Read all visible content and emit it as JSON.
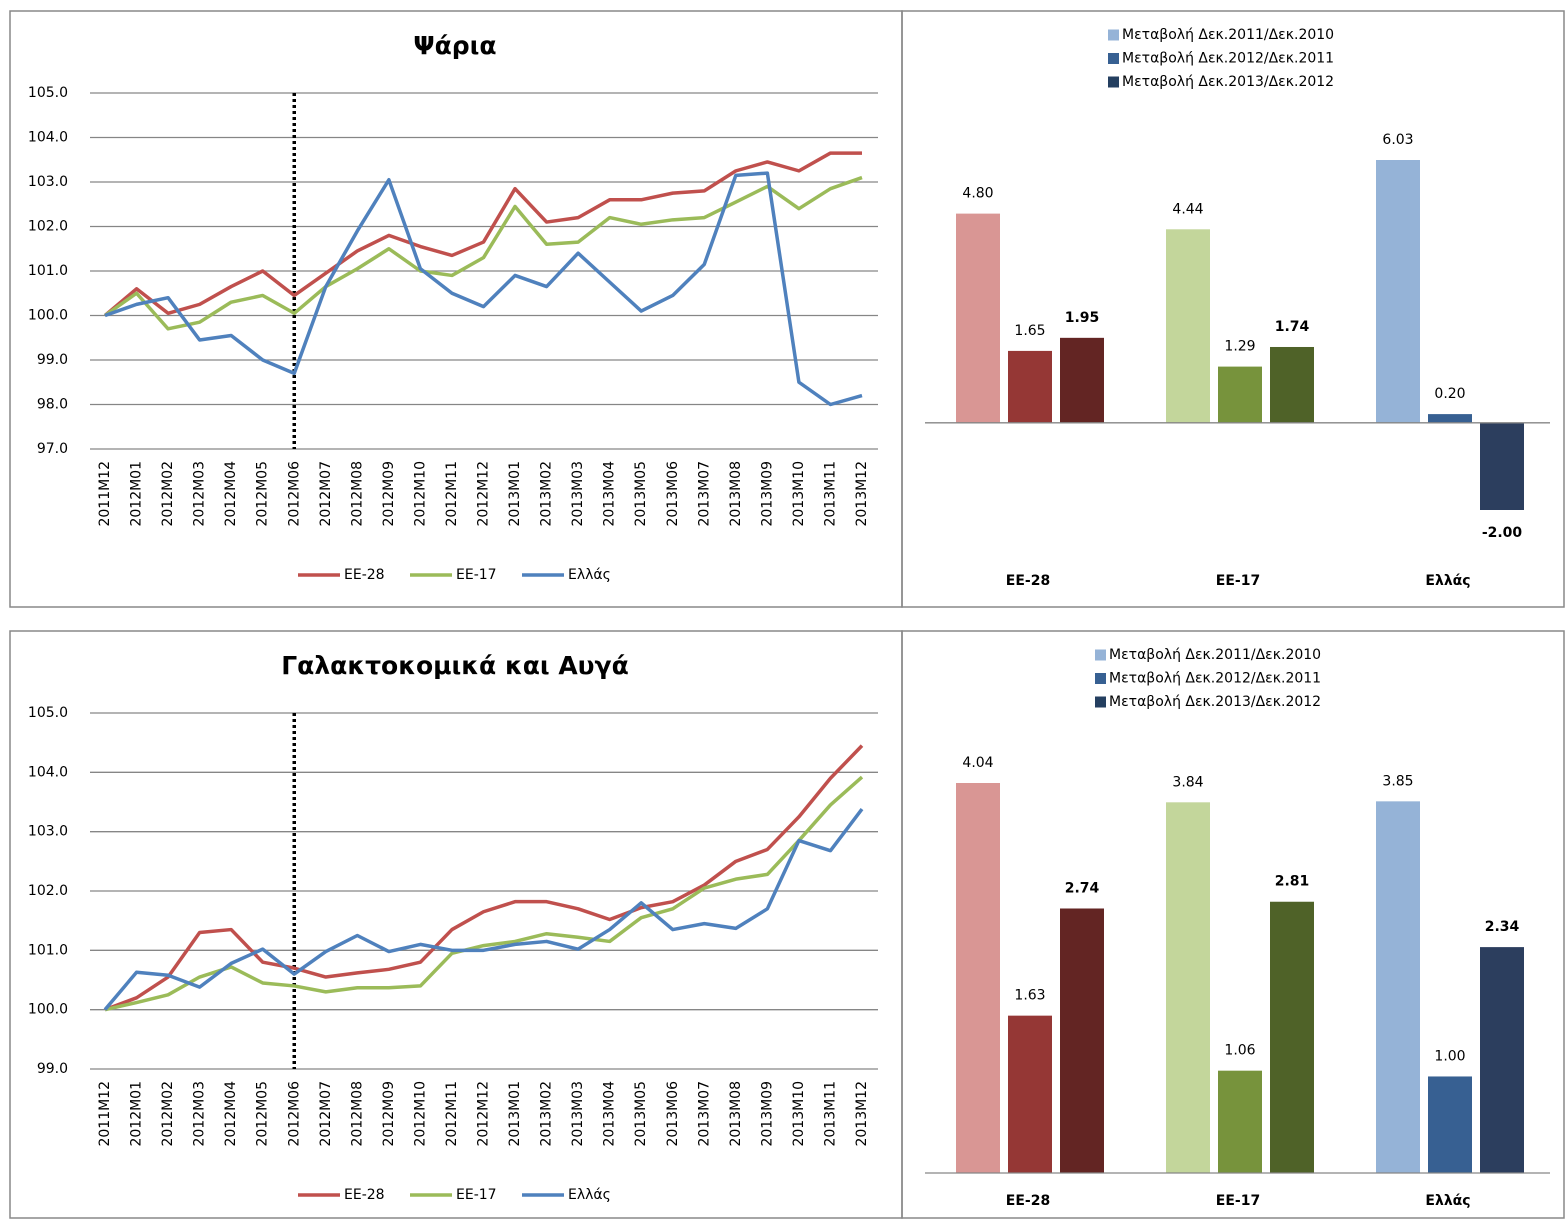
{
  "chart_data": [
    {
      "type": "line",
      "title": "Ψάρια",
      "categories": [
        "2011M12",
        "2012M01",
        "2012M02",
        "2012M03",
        "2012M04",
        "2012M05",
        "2012M06",
        "2012M07",
        "2012M08",
        "2012M09",
        "2012M10",
        "2012M11",
        "2012M12",
        "2013M01",
        "2013M02",
        "2013M03",
        "2013M04",
        "2013M05",
        "2013M06",
        "2013M07",
        "2013M08",
        "2013M09",
        "2013M10",
        "2013M11",
        "2013M12"
      ],
      "series": [
        {
          "name": "ΕΕ-28",
          "color": "#c0504d",
          "values": [
            100.0,
            100.6,
            100.05,
            100.25,
            100.65,
            101.0,
            100.45,
            100.95,
            101.45,
            101.8,
            101.55,
            101.35,
            101.65,
            102.85,
            102.1,
            102.2,
            102.6,
            102.6,
            102.75,
            102.8,
            103.25,
            103.45,
            103.25,
            103.65,
            103.65
          ]
        },
        {
          "name": "ΕΕ-17",
          "color": "#9bbb59",
          "values": [
            100.0,
            100.5,
            99.7,
            99.85,
            100.3,
            100.45,
            100.05,
            100.65,
            101.05,
            101.5,
            101.0,
            100.9,
            101.3,
            102.45,
            101.6,
            101.65,
            102.2,
            102.05,
            102.15,
            102.2,
            102.55,
            102.9,
            102.4,
            102.85,
            103.1
          ]
        },
        {
          "name": "Ελλάς",
          "color": "#4f81bd",
          "values": [
            100.0,
            100.25,
            100.4,
            99.45,
            99.55,
            99.0,
            98.7,
            100.65,
            101.9,
            103.05,
            101.05,
            100.5,
            100.2,
            100.9,
            100.65,
            101.4,
            100.75,
            100.1,
            100.45,
            101.15,
            103.15,
            103.2,
            98.5,
            98.0,
            98.2
          ]
        }
      ],
      "ylim": [
        97,
        105
      ],
      "yticks": [
        {
          "value": 97,
          "label": "97.0"
        },
        {
          "value": 98,
          "label": "98.0"
        },
        {
          "value": 99,
          "label": "99.0"
        },
        {
          "value": 100,
          "label": "100.0"
        },
        {
          "value": 101,
          "label": "101.0"
        },
        {
          "value": 102,
          "label": "102.0"
        },
        {
          "value": 103,
          "label": "103.0"
        },
        {
          "value": 104,
          "label": "104.0"
        },
        {
          "value": 105,
          "label": "105.0"
        }
      ],
      "grid": true,
      "marker_x": "2012M06",
      "legend": "bottom"
    },
    {
      "type": "bar",
      "categories": [
        "ΕΕ-28",
        "ΕΕ-17",
        "Ελλάς"
      ],
      "series": [
        {
          "name": "Μεταβολή Δεκ.2011/Δεκ.2010",
          "color": "#95b3d7",
          "colors": [
            "#d99694",
            "#c3d69b",
            "#95b3d7"
          ],
          "values": [
            4.8,
            4.44,
            6.03
          ],
          "value_labels": [
            "4.80",
            "4.44",
            "6.03"
          ]
        },
        {
          "name": "Μεταβολή Δεκ.2012/Δεκ.2011",
          "color": "#376092",
          "colors": [
            "#953735",
            "#77933c",
            "#376092"
          ],
          "values": [
            1.65,
            1.29,
            0.2
          ],
          "value_labels": [
            "1.65",
            "1.29",
            "0.20"
          ]
        },
        {
          "name": "Μεταβολή Δεκ.2013/Δεκ.2012",
          "color": "#243f60",
          "colors": [
            "#632523",
            "#4f6228",
            "#2c3e5e"
          ],
          "values": [
            1.95,
            1.74,
            -2.0
          ],
          "value_labels": [
            "1.95",
            "1.74",
            "-2.00"
          ],
          "bold_labels": true
        }
      ],
      "legend": "top"
    },
    {
      "type": "line",
      "title": "Γαλακτοκομικά και Αυγά",
      "categories": [
        "2011M12",
        "2012M01",
        "2012M02",
        "2012M03",
        "2012M04",
        "2012M05",
        "2012M06",
        "2012M07",
        "2012M08",
        "2012M09",
        "2012M10",
        "2012M11",
        "2012M12",
        "2013M01",
        "2013M02",
        "2013M03",
        "2013M04",
        "2013M05",
        "2013M06",
        "2013M07",
        "2013M08",
        "2013M09",
        "2013M10",
        "2013M11",
        "2013M12"
      ],
      "series": [
        {
          "name": "ΕΕ-28",
          "color": "#c0504d",
          "values": [
            100.0,
            100.2,
            100.55,
            101.3,
            101.35,
            100.8,
            100.7,
            100.55,
            100.62,
            100.68,
            100.8,
            101.35,
            101.65,
            101.82,
            101.82,
            101.7,
            101.52,
            101.72,
            101.82,
            102.1,
            102.5,
            102.7,
            103.25,
            103.9,
            104.45
          ]
        },
        {
          "name": "ΕΕ-17",
          "color": "#9bbb59",
          "values": [
            100.0,
            100.12,
            100.25,
            100.55,
            100.72,
            100.45,
            100.4,
            100.3,
            100.37,
            100.37,
            100.4,
            100.95,
            101.08,
            101.15,
            101.28,
            101.22,
            101.15,
            101.55,
            101.7,
            102.05,
            102.2,
            102.28,
            102.85,
            103.45,
            103.92
          ]
        },
        {
          "name": "Ελλάς",
          "color": "#4f81bd",
          "values": [
            100.0,
            100.63,
            100.58,
            100.38,
            100.78,
            101.02,
            100.6,
            100.98,
            101.25,
            100.98,
            101.1,
            101.0,
            101.0,
            101.1,
            101.15,
            101.02,
            101.35,
            101.8,
            101.35,
            101.45,
            101.37,
            101.7,
            102.85,
            102.68,
            103.38
          ]
        }
      ],
      "ylim": [
        99,
        105
      ],
      "yticks": [
        {
          "value": 99,
          "label": "99.0"
        },
        {
          "value": 100,
          "label": "100.0"
        },
        {
          "value": 101,
          "label": "101.0"
        },
        {
          "value": 102,
          "label": "102.0"
        },
        {
          "value": 103,
          "label": "103.0"
        },
        {
          "value": 104,
          "label": "104.0"
        },
        {
          "value": 105,
          "label": "105.0"
        }
      ],
      "grid": true,
      "marker_x": "2012M06",
      "legend": "bottom"
    },
    {
      "type": "bar",
      "categories": [
        "ΕΕ-28",
        "ΕΕ-17",
        "Ελλάς"
      ],
      "series": [
        {
          "name": "Μεταβολή Δεκ.2011/Δεκ.2010",
          "color": "#95b3d7",
          "colors": [
            "#d99694",
            "#c3d69b",
            "#95b3d7"
          ],
          "values": [
            4.04,
            3.84,
            3.85
          ],
          "value_labels": [
            "4.04",
            "3.84",
            "3.85"
          ]
        },
        {
          "name": "Μεταβολή Δεκ.2012/Δεκ.2011",
          "color": "#376092",
          "colors": [
            "#953735",
            "#77933c",
            "#376092"
          ],
          "values": [
            1.63,
            1.06,
            1.0
          ],
          "value_labels": [
            "1.63",
            "1.06",
            "1.00"
          ]
        },
        {
          "name": "Μεταβολή Δεκ.2013/Δεκ.2012",
          "color": "#243f60",
          "colors": [
            "#632523",
            "#4f6228",
            "#2c3e5e"
          ],
          "values": [
            2.74,
            2.81,
            2.34
          ],
          "value_labels": [
            "2.74",
            "2.81",
            "2.34"
          ],
          "bold_labels": true
        }
      ],
      "legend": "top"
    }
  ]
}
